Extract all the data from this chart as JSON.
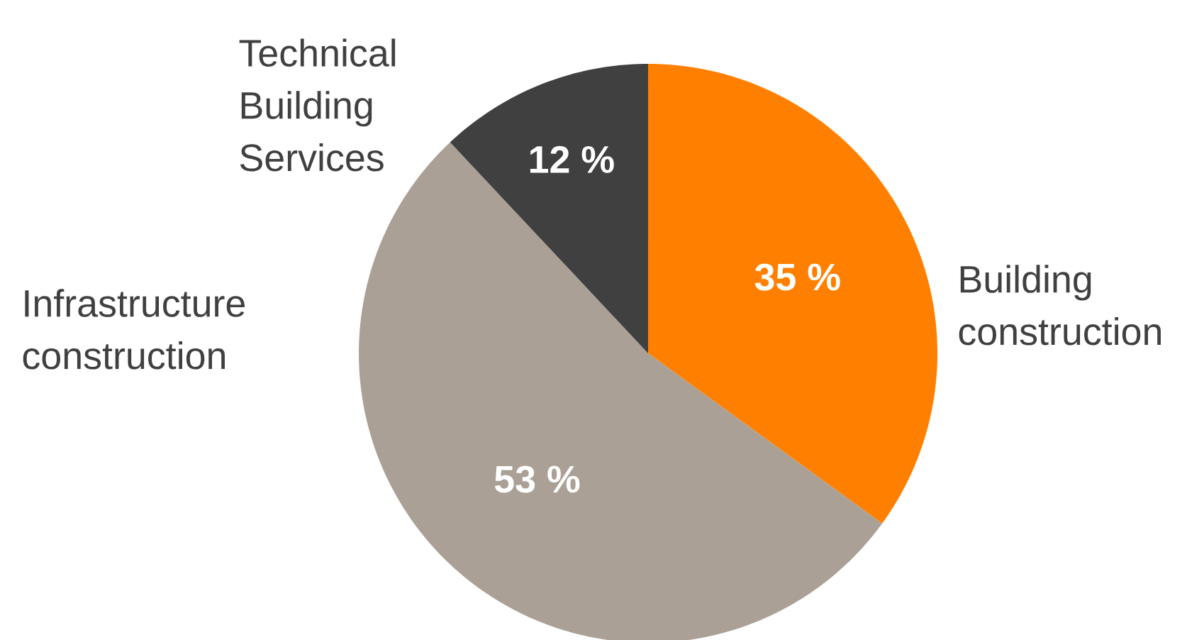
{
  "chart_data": {
    "type": "pie",
    "categories": [
      "Building construction",
      "Infrastructure construction",
      "Technical Building Services"
    ],
    "values": [
      35,
      53,
      12
    ],
    "colors": [
      "#ff8000",
      "#aaa095",
      "#404040"
    ],
    "value_labels": [
      "35 %",
      "53 %",
      "12 %"
    ]
  }
}
